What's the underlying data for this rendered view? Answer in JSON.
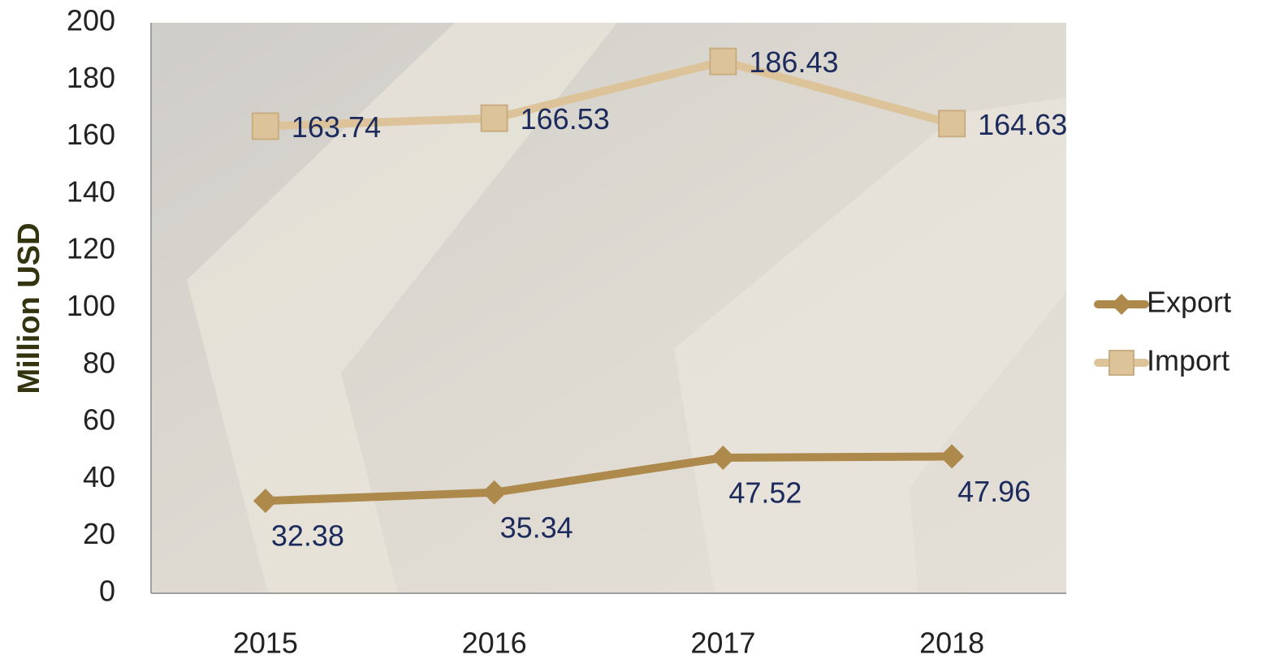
{
  "chart_data": {
    "type": "line",
    "ylabel": "Million USD",
    "categories": [
      "2015",
      "2016",
      "2017",
      "2018"
    ],
    "series": [
      {
        "name": "Export",
        "color": "#ad8a4c",
        "marker": "diamond",
        "values": [
          32.38,
          35.34,
          47.52,
          47.96
        ]
      },
      {
        "name": "Import",
        "color": "#dcc399",
        "marker": "square",
        "values": [
          163.74,
          166.53,
          186.43,
          164.63
        ]
      }
    ],
    "ylim": [
      0,
      200
    ],
    "yticks": [
      0,
      20,
      40,
      60,
      80,
      100,
      120,
      140,
      160,
      180,
      200
    ],
    "grid": false,
    "legend": "right"
  }
}
